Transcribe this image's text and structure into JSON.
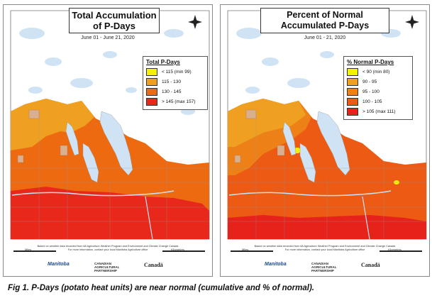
{
  "maps": [
    {
      "title": "Total Accumulation of P-Days",
      "subtitle": "June 01 - June 21, 2020",
      "legend": {
        "title": "Total P-Days",
        "items": [
          {
            "label": "< 115 (min 99)",
            "color": "#f5f200"
          },
          {
            "label": "115 - 130",
            "color": "#f0a020"
          },
          {
            "label": "130 - 145",
            "color": "#ee6a10"
          },
          {
            "label": "> 145 (max 157)",
            "color": "#e8281a"
          }
        ]
      }
    },
    {
      "title": "Percent of Normal Accumulated P-Days",
      "subtitle": "June 01 - 21, 2020",
      "legend": {
        "title": "% Normal P-Days",
        "items": [
          {
            "label": "< 90 (min 80)",
            "color": "#f5f200"
          },
          {
            "label": "90 - 95",
            "color": "#f0a020"
          },
          {
            "label": "95 - 100",
            "color": "#ee8018"
          },
          {
            "label": "100 - 105",
            "color": "#ec5a14"
          },
          {
            "label": "> 105 (max 111)",
            "color": "#e6221a"
          }
        ]
      }
    }
  ],
  "footer": {
    "line1": "Based on weather data recorded from 68 Agriculture Weather Program and Environment and Climate Change Canada",
    "line2": "For more information, contact your local Manitoba Agriculture office"
  },
  "scale": {
    "miles": "Miles",
    "km": "Kilometres"
  },
  "logos": {
    "manitoba": "Manitoba",
    "cap": "CANADIAN AGRICULTURAL PARTNERSHIP",
    "canada": "Canadä"
  },
  "caption": "Fig 1. P-Days (potato heat units) are near normal (cumulative and % of normal).",
  "colors": {
    "lake": "#cfe3f5",
    "land": "#ffffff",
    "border": "#888888"
  }
}
